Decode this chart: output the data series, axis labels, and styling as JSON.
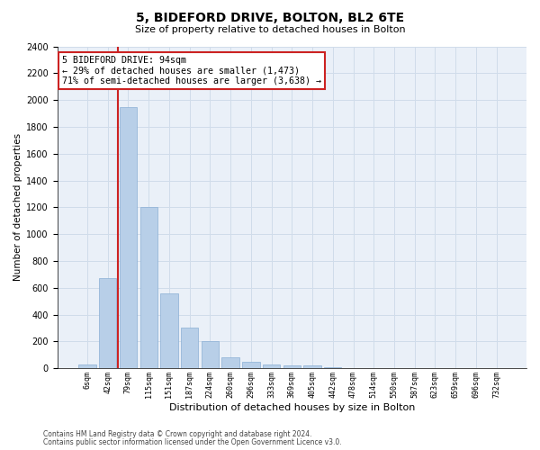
{
  "title1": "5, BIDEFORD DRIVE, BOLTON, BL2 6TE",
  "title2": "Size of property relative to detached houses in Bolton",
  "xlabel": "Distribution of detached houses by size in Bolton",
  "ylabel": "Number of detached properties",
  "categories": [
    "6sqm",
    "42sqm",
    "79sqm",
    "115sqm",
    "151sqm",
    "187sqm",
    "224sqm",
    "260sqm",
    "296sqm",
    "333sqm",
    "369sqm",
    "405sqm",
    "442sqm",
    "478sqm",
    "514sqm",
    "550sqm",
    "587sqm",
    "623sqm",
    "659sqm",
    "696sqm",
    "732sqm"
  ],
  "values": [
    30,
    670,
    1950,
    1200,
    560,
    300,
    200,
    80,
    50,
    30,
    20,
    20,
    5,
    3,
    1,
    1,
    0,
    0,
    0,
    0,
    0
  ],
  "bar_color": "#b8cfe8",
  "bar_edge_color": "#8aafd4",
  "ylim": [
    0,
    2400
  ],
  "yticks": [
    0,
    200,
    400,
    600,
    800,
    1000,
    1200,
    1400,
    1600,
    1800,
    2000,
    2200,
    2400
  ],
  "property_bar_index": 2,
  "vline_color": "#cc2222",
  "annotation_text": "5 BIDEFORD DRIVE: 94sqm\n← 29% of detached houses are smaller (1,473)\n71% of semi-detached houses are larger (3,638) →",
  "annotation_box_color": "#ffffff",
  "annotation_box_edge": "#cc2222",
  "footer1": "Contains HM Land Registry data © Crown copyright and database right 2024.",
  "footer2": "Contains public sector information licensed under the Open Government Licence v3.0.",
  "grid_color": "#d0dcea",
  "background_color": "#eaf0f8"
}
